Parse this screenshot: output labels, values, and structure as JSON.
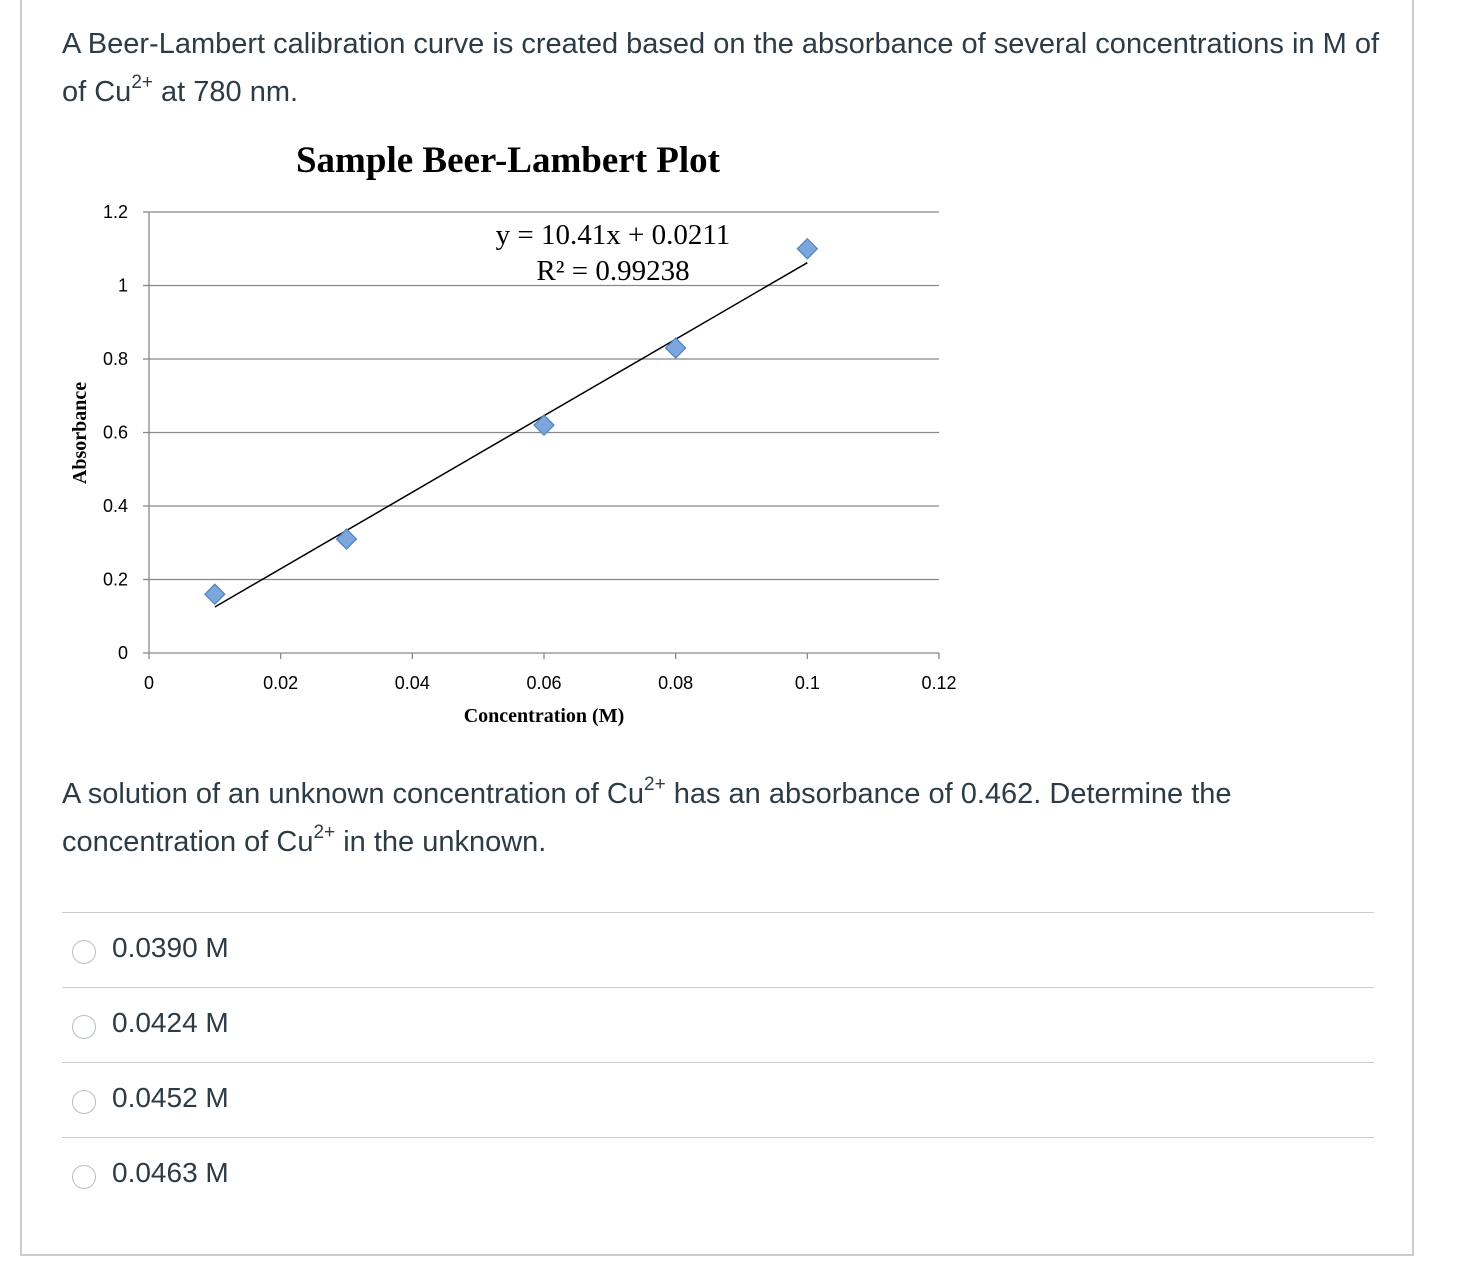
{
  "question": {
    "intro_1": "A Beer-Lambert calibration curve is created based on the absorbance of several concentrations in M of of Cu",
    "intro_sup": "2+",
    "intro_2": " at 780 nm.",
    "ask_1": "A solution of an unknown concentration of Cu",
    "ask_sup_1": "2+",
    "ask_2": " has an absorbance of 0.462. Determine the concentration of Cu",
    "ask_sup_2": "2+",
    "ask_3": " in the unknown."
  },
  "chart_data": {
    "type": "scatter",
    "title": "Sample Beer-Lambert Plot",
    "xlabel": "Concentration (M)",
    "ylabel": "Absorbance",
    "xlim": [
      0,
      0.12
    ],
    "ylim": [
      0,
      1.2
    ],
    "x_ticks": [
      "0",
      "0.02",
      "0.04",
      "0.06",
      "0.08",
      "0.1",
      "0.12"
    ],
    "y_ticks": [
      "0",
      "0.2",
      "0.4",
      "0.6",
      "0.8",
      "1",
      "1.2"
    ],
    "grid": true,
    "points": [
      {
        "x": 0.01,
        "y": 0.16
      },
      {
        "x": 0.03,
        "y": 0.31
      },
      {
        "x": 0.06,
        "y": 0.62
      },
      {
        "x": 0.08,
        "y": 0.83
      },
      {
        "x": 0.1,
        "y": 1.1
      }
    ],
    "trendline": {
      "slope": 10.41,
      "intercept": 0.0211,
      "x_range": [
        0.01,
        0.1
      ],
      "equation_label": "y = 10.41x + 0.0211",
      "r2_label": "R² = 0.99238"
    },
    "colors": {
      "marker": "#7ba7dc",
      "marker_edge": "#4f81bd",
      "line": "#000000",
      "grid": "#888888"
    }
  },
  "answers": [
    {
      "label": "0.0390 M"
    },
    {
      "label": "0.0424 M"
    },
    {
      "label": "0.0452 M"
    },
    {
      "label": "0.0463 M"
    }
  ]
}
